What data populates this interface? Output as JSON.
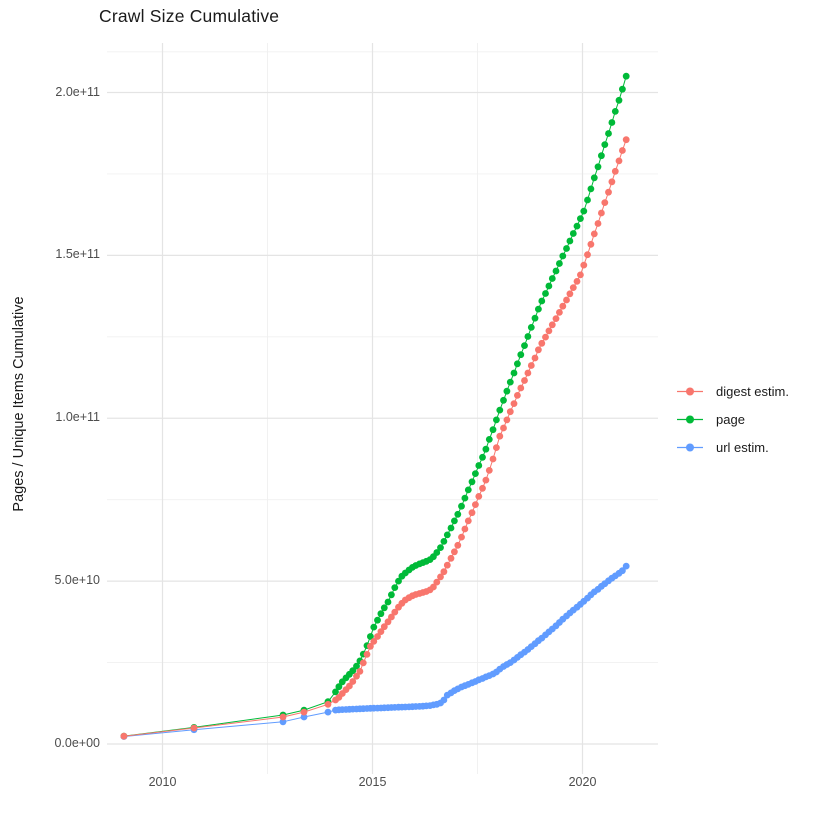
{
  "chart_data": {
    "type": "scatter",
    "title": "Crawl Size Cumulative",
    "xlabel": "",
    "ylabel": "Pages / Unique Items Cumulative",
    "value_unit_multiplier": 1000000000,
    "background": "#FFFFFF",
    "gridline_color": "#E4E4E4",
    "gridline_minor_color": "#F0F0F0",
    "axis_text_color": "#4D4D4D",
    "legend_position": "right",
    "x_axis": {
      "tick_labels": [
        "2010",
        "2015",
        "2020"
      ],
      "tick_years": [
        2010,
        2015,
        2020
      ],
      "minor_years": [
        2012.5,
        2017.5
      ],
      "range_years": [
        2008.68,
        2021.79
      ]
    },
    "y_axis": {
      "tick_labels": [
        "0.0e+00",
        "5.0e+10",
        "1.0e+11",
        "1.5e+11",
        "2.0e+11"
      ],
      "tick_values": [
        0,
        50,
        100,
        150,
        200
      ],
      "minor_values": [
        25,
        75,
        125,
        175,
        212.5
      ],
      "range_values": [
        -10,
        215
      ]
    },
    "x": [
      2009.08,
      2010.75,
      2012.87,
      2013.37,
      2013.94,
      2014.12,
      2014.2,
      2014.28,
      2014.37,
      2014.45,
      2014.53,
      2014.62,
      2014.7,
      2014.78,
      2014.87,
      2014.95,
      2015.03,
      2015.12,
      2015.2,
      2015.28,
      2015.37,
      2015.45,
      2015.53,
      2015.62,
      2015.7,
      2015.78,
      2015.87,
      2015.95,
      2016.03,
      2016.12,
      2016.2,
      2016.28,
      2016.37,
      2016.45,
      2016.53,
      2016.62,
      2016.7,
      2016.78,
      2016.87,
      2016.95,
      2017.03,
      2017.12,
      2017.2,
      2017.28,
      2017.37,
      2017.45,
      2017.53,
      2017.62,
      2017.7,
      2017.78,
      2017.87,
      2017.95,
      2018.03,
      2018.12,
      2018.2,
      2018.28,
      2018.37,
      2018.45,
      2018.53,
      2018.62,
      2018.7,
      2018.78,
      2018.87,
      2018.95,
      2019.03,
      2019.12,
      2019.2,
      2019.28,
      2019.37,
      2019.45,
      2019.53,
      2019.62,
      2019.7,
      2019.78,
      2019.87,
      2019.95,
      2020.03,
      2020.12,
      2020.2,
      2020.28,
      2020.37,
      2020.45,
      2020.53,
      2020.62,
      2020.7,
      2020.78,
      2020.87,
      2020.95,
      2021.04
    ],
    "series": [
      {
        "name": "digest estim.",
        "color": "#F8766D",
        "values": [
          2.4,
          4.9,
          8.3,
          9.8,
          12.2,
          13.5,
          14.3,
          15.5,
          16.7,
          17.8,
          19.2,
          20.8,
          22.3,
          24.9,
          27.5,
          30.0,
          31.5,
          33.0,
          34.5,
          36.0,
          37.5,
          39.0,
          40.5,
          42.0,
          43.2,
          44.2,
          44.9,
          45.5,
          45.9,
          46.2,
          46.5,
          46.8,
          47.3,
          48.2,
          49.7,
          51.3,
          52.9,
          54.9,
          57.0,
          59.0,
          61.0,
          63.5,
          66.0,
          68.5,
          71.0,
          73.5,
          76.0,
          78.5,
          81.0,
          84.0,
          87.5,
          91.0,
          94.5,
          97.0,
          99.5,
          102.0,
          104.5,
          107.0,
          109.3,
          111.6,
          113.9,
          116.2,
          118.5,
          121.0,
          123.0,
          124.9,
          126.8,
          128.7,
          130.6,
          132.5,
          134.4,
          136.3,
          138.2,
          140.1,
          142.0,
          144.0,
          147.0,
          150.2,
          153.4,
          156.6,
          159.8,
          163.0,
          166.2,
          169.4,
          172.6,
          175.8,
          179.0,
          182.2,
          185.5
        ]
      },
      {
        "name": "page",
        "color": "#00BA38",
        "values": [
          2.4,
          5.1,
          8.9,
          10.4,
          13.0,
          16.0,
          17.6,
          19.1,
          20.3,
          21.4,
          22.5,
          23.9,
          25.5,
          27.6,
          30.2,
          33.0,
          35.9,
          38.0,
          40.0,
          41.8,
          43.6,
          45.8,
          48.0,
          50.0,
          51.5,
          52.5,
          53.4,
          54.2,
          54.8,
          55.3,
          55.7,
          56.1,
          56.6,
          57.5,
          58.8,
          60.3,
          62.2,
          64.2,
          66.3,
          68.5,
          70.5,
          73.0,
          75.5,
          78.0,
          80.5,
          83.0,
          85.5,
          88.0,
          90.5,
          93.5,
          96.5,
          99.5,
          102.5,
          105.5,
          108.3,
          111.1,
          113.9,
          116.7,
          119.5,
          122.3,
          125.1,
          127.9,
          130.7,
          133.5,
          136.0,
          138.3,
          140.6,
          142.9,
          145.2,
          147.5,
          149.8,
          152.1,
          154.4,
          156.7,
          159.0,
          161.3,
          163.6,
          167.0,
          170.4,
          173.8,
          177.2,
          180.6,
          184.0,
          187.4,
          190.8,
          194.2,
          197.6,
          201.0,
          205.0
        ]
      },
      {
        "name": "url estim.",
        "color": "#619CFF",
        "values": [
          2.3,
          4.4,
          6.8,
          8.3,
          9.8,
          10.4,
          10.5,
          10.55,
          10.6,
          10.65,
          10.7,
          10.75,
          10.8,
          10.85,
          10.9,
          10.95,
          11.0,
          11.02,
          11.05,
          11.1,
          11.15,
          11.2,
          11.25,
          11.3,
          11.32,
          11.35,
          11.4,
          11.45,
          11.5,
          11.55,
          11.6,
          11.7,
          11.8,
          12.0,
          12.2,
          12.6,
          13.5,
          15.0,
          15.7,
          16.4,
          16.9,
          17.5,
          17.9,
          18.3,
          18.8,
          19.2,
          19.7,
          20.1,
          20.6,
          21.0,
          21.5,
          22.1,
          23.0,
          23.8,
          24.4,
          25.0,
          25.8,
          26.6,
          27.4,
          28.2,
          29.0,
          29.9,
          30.8,
          31.7,
          32.5,
          33.5,
          34.4,
          35.3,
          36.3,
          37.3,
          38.3,
          39.3,
          40.2,
          41.1,
          42.0,
          42.9,
          43.8,
          44.8,
          45.8,
          46.7,
          47.5,
          48.4,
          49.2,
          50.1,
          50.9,
          51.6,
          52.4,
          53.2,
          54.6
        ]
      }
    ],
    "draw_order_series_indices": [
      1,
      2,
      0
    ]
  }
}
